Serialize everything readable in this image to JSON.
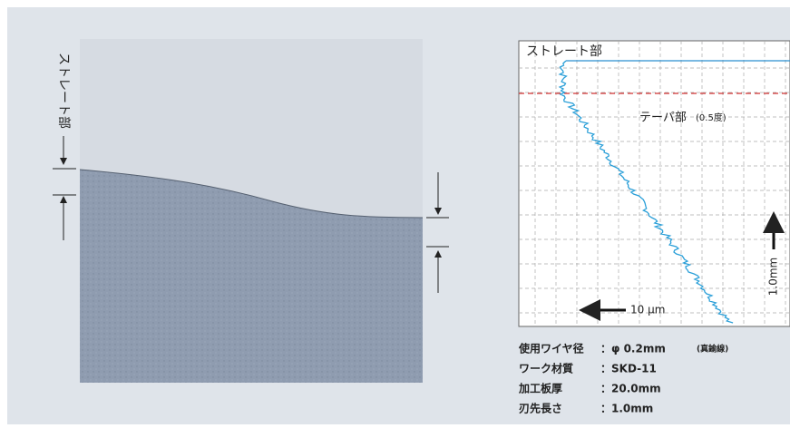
{
  "photo": {
    "side_label": "ストレート部"
  },
  "profile": {
    "straight_label": "ストレート部",
    "taper_label": "テーパ部",
    "taper_angle": "(0.5度)",
    "x_scale": "10 μm",
    "y_scale": "1.0mm"
  },
  "specs": [
    {
      "label": "使用ワイヤ径",
      "value": "：φ 0.2mm",
      "note": "(真鍮線)"
    },
    {
      "label": "ワーク材質",
      "value": "：SKD-11"
    },
    {
      "label": "加工板厚",
      "value": "：20.0mm"
    },
    {
      "label": "刃先長さ",
      "value": "：1.0mm"
    }
  ]
}
